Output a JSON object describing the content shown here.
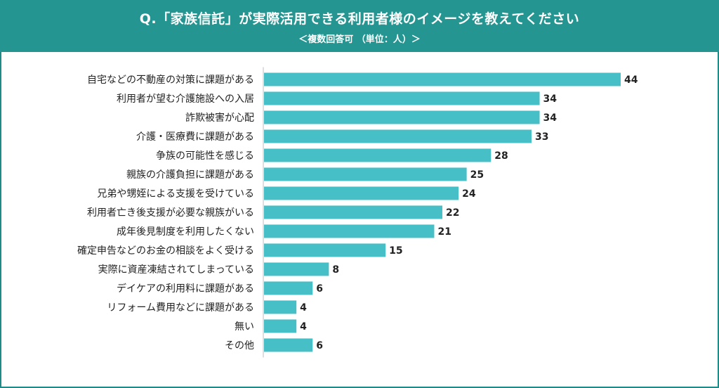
{
  "header": {
    "title": "Q.「家族信託」が実際活用できる利用者様のイメージを教えてください",
    "subtitle": "＜複数回答可 （単位：人）＞"
  },
  "colors": {
    "header_bg": "#249590",
    "bar": "#47bfc6",
    "frame": "#1f8a87"
  },
  "chart_data": {
    "type": "bar",
    "orientation": "horizontal",
    "categories": [
      "自宅などの不動産の対策に課題がある",
      "利用者が望む介護施設への入居",
      "詐欺被害が心配",
      "介護・医療費に課題がある",
      "争族の可能性を感じる",
      "親族の介護負担に課題がある",
      "兄弟や甥姪による支援を受けている",
      "利用者亡き後支援が必要な親族がいる",
      "成年後見制度を利用したくない",
      "確定申告などのお金の相談をよく受ける",
      "実際に資産凍結されてしまっている",
      "デイケアの利用料に課題がある",
      "リフォーム費用などに課題がある",
      "無い",
      "その他"
    ],
    "values": [
      44,
      34,
      34,
      33,
      28,
      25,
      24,
      22,
      21,
      15,
      8,
      6,
      4,
      4,
      6
    ],
    "unit": "人",
    "xlim": [
      0,
      44
    ]
  }
}
